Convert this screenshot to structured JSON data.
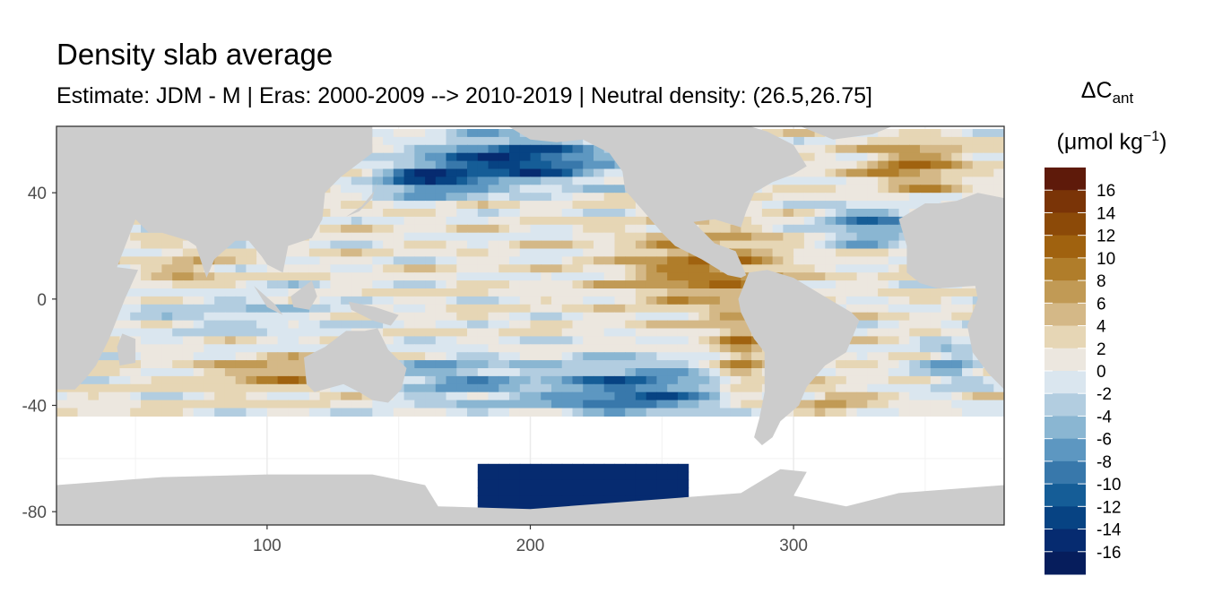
{
  "chart_data": {
    "type": "heatmap",
    "title": "Density slab average",
    "subtitle": "Estimate: JDM - M | Eras: 2000-2009 --> 2010-2019 | Neutral density: (26.5,26.75]",
    "xlabel": "",
    "ylabel": "",
    "xlim": [
      20,
      380
    ],
    "ylim": [
      -85,
      65
    ],
    "x_ticks": [
      100,
      200,
      300
    ],
    "y_ticks": [
      40,
      0,
      -40,
      -80
    ],
    "x_tick_labels": [
      "100",
      "200",
      "300"
    ],
    "y_tick_labels": [
      "40",
      "0",
      "-40",
      "-80"
    ],
    "grid": true,
    "legend": {
      "title_main": "ΔC",
      "title_sub": "ant",
      "unit": "(μmol kg",
      "unit_exp": "−1",
      "unit_close": ")",
      "position": "right",
      "labels": [
        "16",
        "14",
        "12",
        "10",
        "8",
        "6",
        "4",
        "2",
        "0",
        "-2",
        "-4",
        "-6",
        "-8",
        "-10",
        "-12",
        "-14",
        "-16"
      ],
      "colors": [
        "#5e1a0a",
        "#7a3407",
        "#8c4a08",
        "#a0620f",
        "#b07d2a",
        "#c19a55",
        "#d4b887",
        "#e6d6b5",
        "#ece7df",
        "#dae6ef",
        "#b2cde0",
        "#8ab6d2",
        "#5d97c1",
        "#3878ab",
        "#155d97",
        "#074383",
        "#062b70",
        "#061d5c"
      ]
    },
    "land_color": "#cccccc",
    "panel_border": "#333333"
  }
}
